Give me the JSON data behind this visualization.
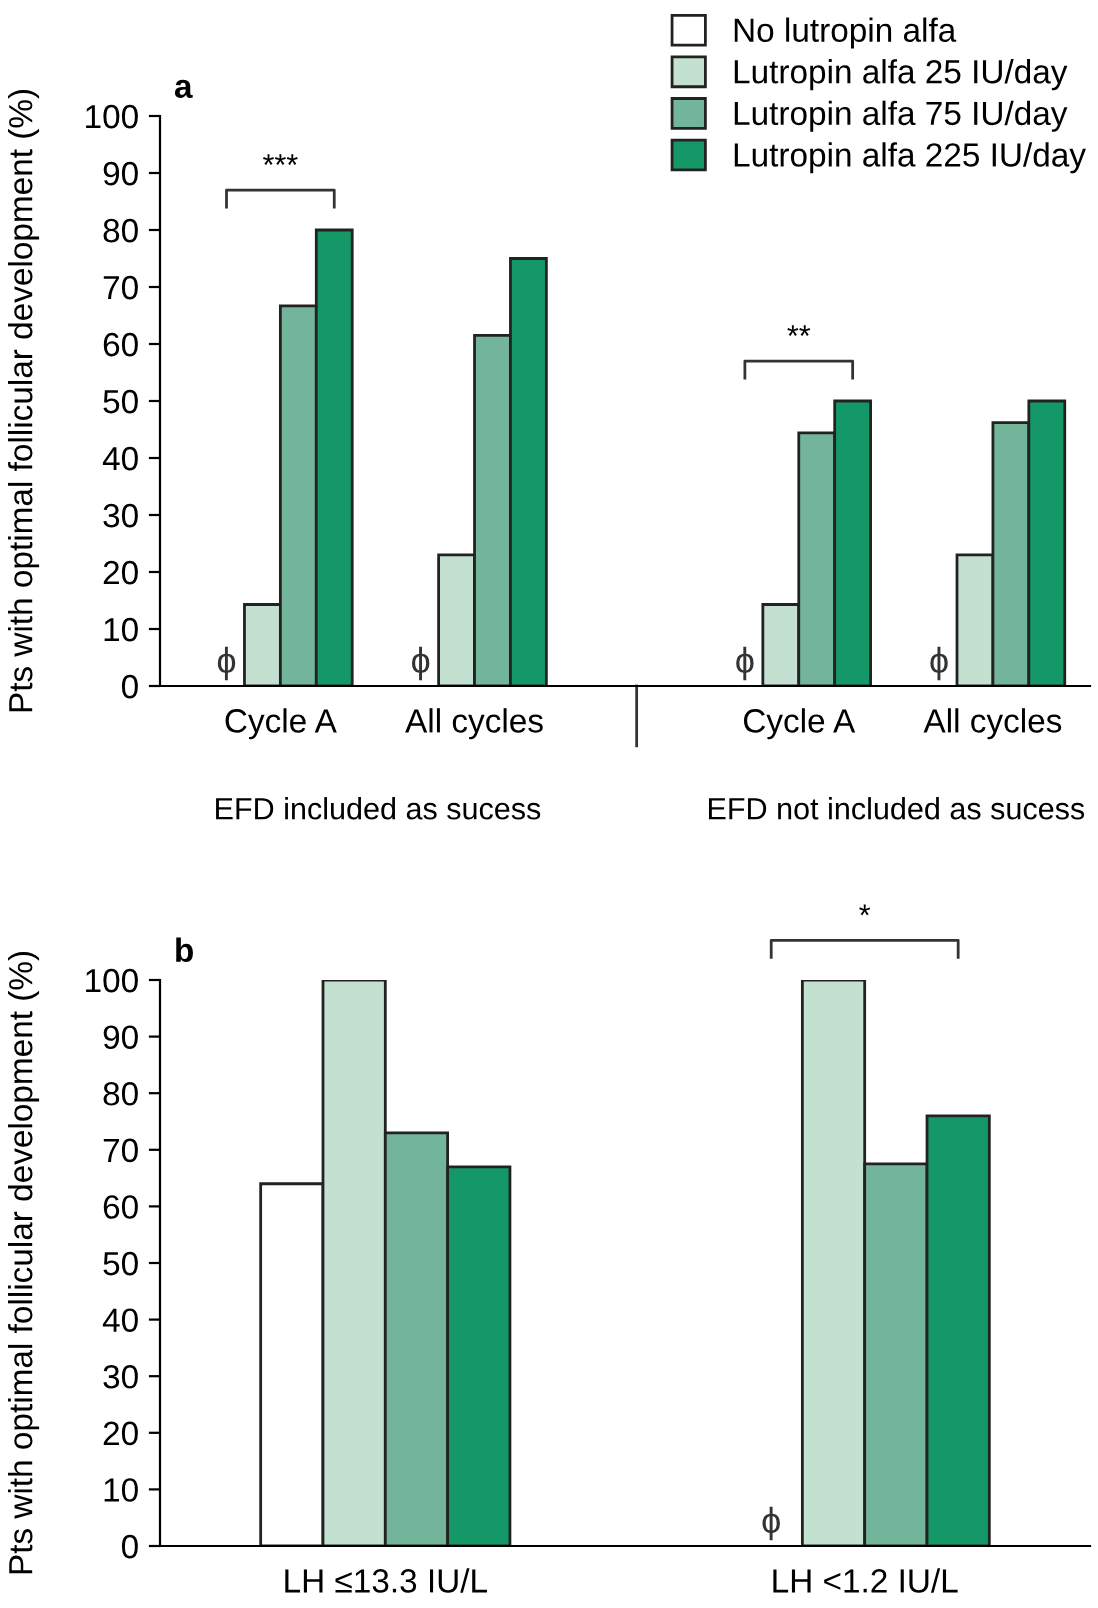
{
  "chart_data": [
    {
      "type": "bar",
      "title": "a",
      "ylabel": "Pts with optimal follicular development (%)",
      "categories": [
        "Cycle A",
        "All cycles",
        "Cycle A",
        "All cycles"
      ],
      "series": [
        {
          "name": "No lutropin alfa",
          "color": "#ffffff",
          "values": [
            null,
            null,
            null,
            null
          ],
          "value_labels": [
            "ϕ",
            "ϕ",
            "ϕ",
            "ϕ"
          ]
        },
        {
          "name": "Lutropin alfa 25 IU/day",
          "color": "#c3e0d0",
          "values": [
            14.3,
            23,
            14.3,
            23
          ]
        },
        {
          "name": "Lutropin alfa 75 IU/day",
          "color": "#72b59a",
          "values": [
            66.7,
            61.5,
            44.4,
            46.2
          ]
        },
        {
          "name": "Lutropin alfa 225 IU/day",
          "color": "#159868",
          "values": [
            80,
            75,
            50,
            50
          ]
        }
      ],
      "annotations": [
        "***",
        "**",
        "EFD included as sucess",
        "EFD not included as sucess"
      ],
      "ylim": [
        0,
        100
      ],
      "yticks": [
        0,
        10,
        20,
        30,
        40,
        50,
        60,
        70,
        80,
        90,
        100
      ],
      "grid": false,
      "legend": "top right"
    },
    {
      "type": "bar",
      "title": "b",
      "ylabel": "Pts with optimal follicular development (%)",
      "categories": [
        "LH ≤13.3 IU/L",
        "LH <1.2 IU/L"
      ],
      "series": [
        {
          "color": "#ffffff",
          "values": [
            64,
            null
          ],
          "value_labels": [
            null,
            "ϕ"
          ]
        },
        {
          "color": "#c3e0d0",
          "values": [
            100,
            100
          ]
        },
        {
          "color": "#72b59a",
          "values": [
            73,
            67.5
          ]
        },
        {
          "color": "#159868",
          "values": [
            67,
            76
          ]
        }
      ],
      "annotations": [
        "*"
      ],
      "ylim": [
        0,
        100
      ],
      "yticks": [
        0,
        10,
        20,
        30,
        40,
        50,
        60,
        70,
        80,
        90,
        100
      ],
      "grid": false,
      "legend": false
    }
  ]
}
